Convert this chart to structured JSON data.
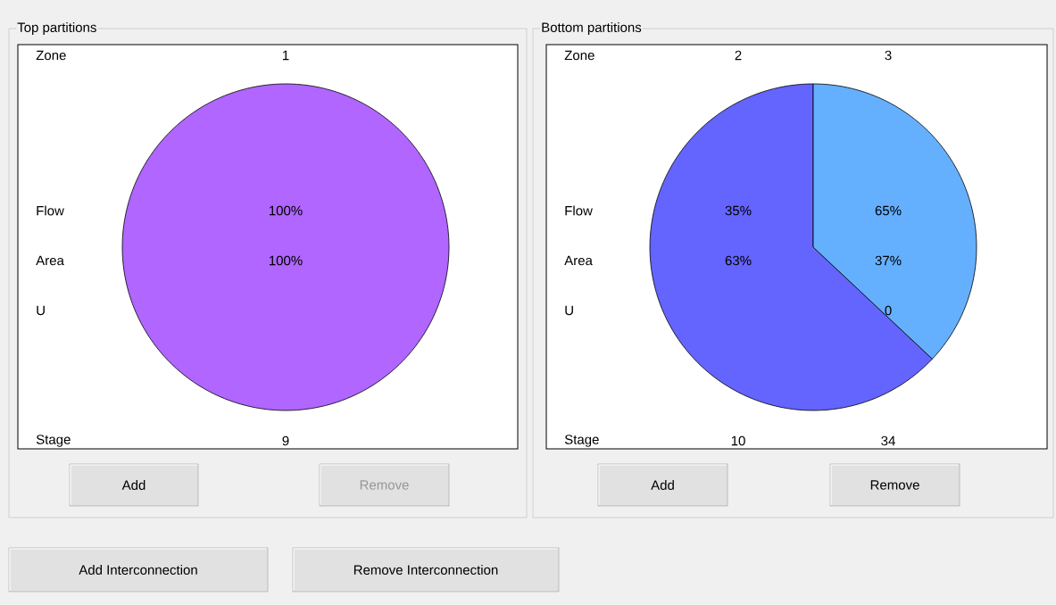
{
  "chart_data": [
    {
      "type": "pie",
      "title": "Top partitions",
      "categories": [
        "1"
      ],
      "values": [
        100
      ],
      "colors": [
        "#b066ff"
      ],
      "value_labels": [
        "100%"
      ],
      "annotations": [
        "Zone",
        "Flow",
        "Area",
        "U",
        "Stage",
        {
          "text": "100%",
          "x": "1"
        },
        {
          "text": "9",
          "x": "1"
        },
        "Add",
        "Remove"
      ]
    },
    {
      "type": "pie",
      "title": "Bottom partitions",
      "categories": [
        "2",
        "3"
      ],
      "values": [
        63,
        37
      ],
      "colors": [
        "#6464ff",
        "#64b0ff"
      ],
      "value_labels": [
        "63%",
        "37%"
      ],
      "annotations": [
        "Zone",
        "Flow",
        "Area",
        "U",
        "Stage",
        {
          "text": "35%",
          "x": "2"
        },
        {
          "text": "65%",
          "x": "3"
        },
        {
          "text": "0",
          "x": "3"
        },
        {
          "text": "10",
          "x": "2"
        },
        {
          "text": "34",
          "x": "3"
        },
        "Add",
        "Remove"
      ]
    },
    {
      "type": "other",
      "annotations": [
        "Add Interconnection",
        "Remove Interconnection"
      ]
    }
  ]
}
